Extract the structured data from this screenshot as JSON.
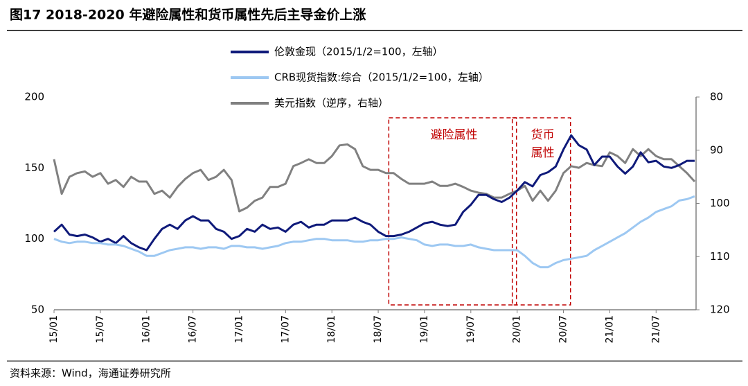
{
  "chart_data": {
    "type": "line",
    "title": "图17 2018-2020 年避险属性和货币属性先后主导金价上涨",
    "source": "资料来源：Wind，海通证券研究所",
    "x": [
      "15/01",
      "15/02",
      "15/03",
      "15/04",
      "15/05",
      "15/06",
      "15/07",
      "15/08",
      "15/09",
      "15/10",
      "15/11",
      "15/12",
      "16/01",
      "16/02",
      "16/03",
      "16/04",
      "16/05",
      "16/06",
      "16/07",
      "16/08",
      "16/09",
      "16/10",
      "16/11",
      "16/12",
      "17/01",
      "17/02",
      "17/03",
      "17/04",
      "17/05",
      "17/06",
      "17/07",
      "17/08",
      "17/09",
      "17/10",
      "17/11",
      "17/12",
      "18/01",
      "18/02",
      "18/03",
      "18/04",
      "18/05",
      "18/06",
      "18/07",
      "18/08",
      "18/09",
      "18/10",
      "18/11",
      "18/12",
      "19/01",
      "19/02",
      "19/03",
      "19/04",
      "19/05",
      "19/06",
      "19/07",
      "19/08",
      "19/09",
      "19/10",
      "19/11",
      "19/12",
      "20/01",
      "20/02",
      "20/03",
      "20/04",
      "20/05",
      "20/06",
      "20/07",
      "20/08",
      "20/09",
      "20/10",
      "20/11",
      "20/12",
      "21/01",
      "21/02",
      "21/03",
      "21/04",
      "21/05",
      "21/06",
      "21/07",
      "21/08",
      "21/09",
      "21/10",
      "21/11",
      "21/12"
    ],
    "xticks": [
      "15/01",
      "15/07",
      "16/01",
      "16/07",
      "17/01",
      "17/07",
      "18/01",
      "18/07",
      "19/01",
      "19/07",
      "20/01",
      "20/07",
      "21/01",
      "21/07"
    ],
    "ylim": [
      50,
      200
    ],
    "yticks": [
      50,
      100,
      150,
      200
    ],
    "y2lim": [
      120,
      80
    ],
    "y2ticks": [
      80,
      90,
      100,
      110,
      120
    ],
    "series": [
      {
        "name": "伦敦金现（2015/1/2=100，左轴）",
        "color": "#0f1a7a",
        "values": [
          105,
          110,
          103,
          102,
          103,
          101,
          98,
          100,
          97,
          102,
          97,
          94,
          92,
          100,
          107,
          110,
          107,
          113,
          116,
          113,
          113,
          107,
          105,
          100,
          102,
          107,
          105,
          110,
          107,
          108,
          105,
          110,
          112,
          108,
          110,
          110,
          113,
          113,
          113,
          115,
          112,
          110,
          105,
          102,
          102,
          103,
          105,
          108,
          111,
          112,
          110,
          109,
          110,
          119,
          124,
          131,
          131,
          128,
          126,
          129,
          134,
          140,
          137,
          145,
          147,
          151,
          163,
          173,
          166,
          163,
          152,
          158,
          158,
          151,
          146,
          151,
          161,
          154,
          155,
          151,
          150,
          152,
          155,
          155
        ]
      },
      {
        "name": "CRB现货指数:综合（2015/1/2=100，左轴）",
        "color": "#9dc8f2",
        "values": [
          100,
          98,
          97,
          98,
          98,
          97,
          97,
          96,
          96,
          95,
          93,
          91,
          88,
          88,
          90,
          92,
          93,
          94,
          94,
          93,
          94,
          94,
          93,
          95,
          95,
          94,
          94,
          93,
          94,
          95,
          97,
          98,
          98,
          99,
          100,
          100,
          99,
          99,
          99,
          98,
          98,
          99,
          99,
          100,
          100,
          101,
          100,
          99,
          96,
          95,
          96,
          96,
          95,
          95,
          96,
          94,
          93,
          92,
          92,
          92,
          92,
          88,
          83,
          80,
          80,
          83,
          85,
          86,
          87,
          88,
          92,
          95,
          98,
          101,
          104,
          108,
          112,
          115,
          119,
          121,
          123,
          127,
          128,
          130
        ]
      },
      {
        "name": "美元指数（逆序，右轴）",
        "color": "#808080",
        "axis": "y2",
        "values": [
          91.7,
          98.2,
          95,
          94.3,
          94,
          95,
          94.3,
          96.3,
          95.6,
          96.9,
          95,
          95.9,
          95.9,
          98.2,
          97.6,
          98.9,
          96.9,
          95.4,
          94.3,
          93.7,
          95.6,
          95,
          93.7,
          95.6,
          101.5,
          100.8,
          99.5,
          98.9,
          96.9,
          96.9,
          96.3,
          93,
          92.4,
          91.7,
          92.4,
          92.4,
          91.1,
          89.1,
          88.9,
          89.8,
          93,
          93.7,
          93.7,
          94.3,
          94.3,
          95.4,
          96.3,
          96.3,
          96.3,
          95.9,
          96.7,
          96.7,
          96.3,
          96.9,
          97.6,
          98,
          98.2,
          98.9,
          98.9,
          98.2,
          97.6,
          96.7,
          99.5,
          97.6,
          99.5,
          97.6,
          94.3,
          93,
          93.3,
          92.4,
          92.8,
          93,
          90.4,
          91.1,
          92.4,
          89.8,
          91.1,
          89.8,
          91.1,
          91.7,
          91.7,
          93,
          94.3,
          95.9
        ]
      }
    ],
    "annotations": [
      {
        "lines": [
          "避险属性"
        ],
        "start": "18/09",
        "end": "20/01",
        "color": "#c00000"
      },
      {
        "lines": [
          "货币",
          "属性"
        ],
        "start": "20/01",
        "end": "20/08",
        "color": "#c00000"
      }
    ]
  }
}
